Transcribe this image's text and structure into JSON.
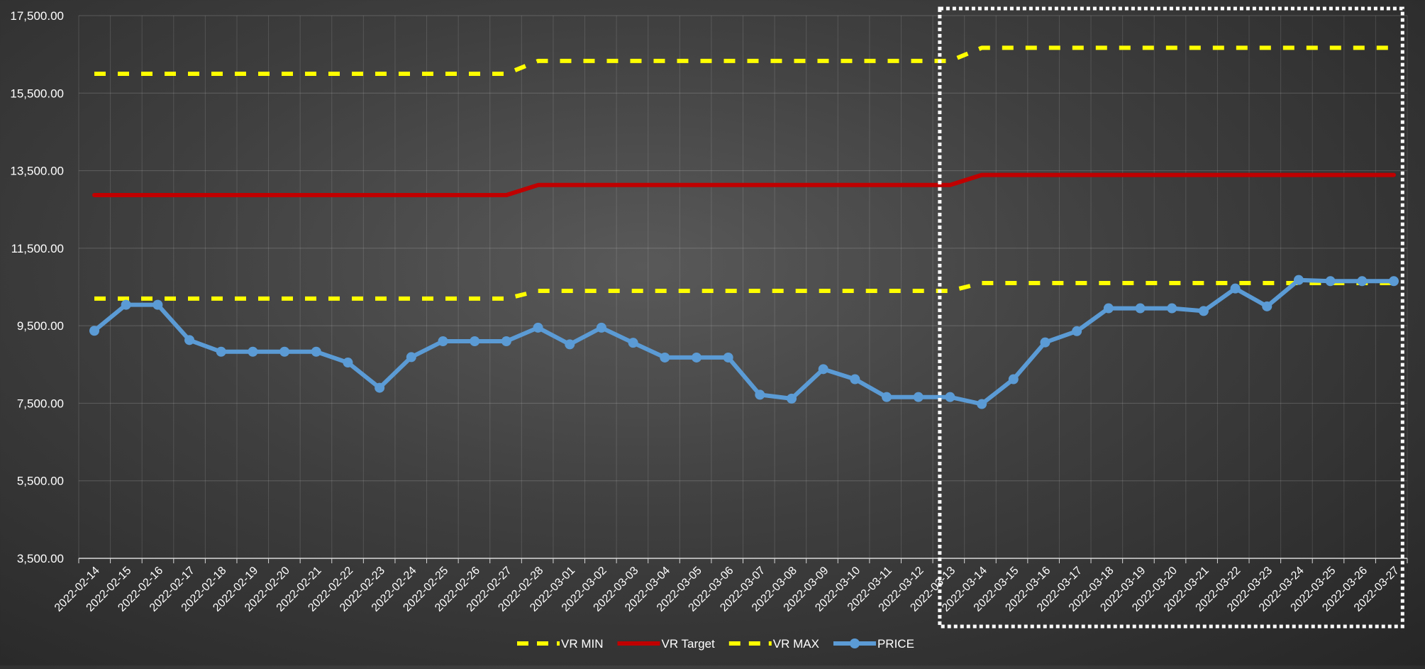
{
  "chart_data": {
    "type": "line",
    "title": "",
    "xlabel": "",
    "ylabel": "",
    "ylim": [
      3500,
      17500
    ],
    "y_ticks": [
      "3,500.00",
      "5,500.00",
      "7,500.00",
      "9,500.00",
      "11,500.00",
      "13,500.00",
      "15,500.00",
      "17,500.00"
    ],
    "y_tick_values": [
      3500,
      5500,
      7500,
      9500,
      11500,
      13500,
      15500,
      17500
    ],
    "grid": true,
    "legend_position": "bottom",
    "categories": [
      "2022-02-14",
      "2022-02-15",
      "2022-02-16",
      "2022-02-17",
      "2022-02-18",
      "2022-02-19",
      "2022-02-20",
      "2022-02-21",
      "2022-02-22",
      "2022-02-23",
      "2022-02-24",
      "2022-02-25",
      "2022-02-26",
      "2022-02-27",
      "2022-02-28",
      "2022-03-01",
      "2022-03-02",
      "2022-03-03",
      "2022-03-04",
      "2022-03-05",
      "2022-03-06",
      "2022-03-07",
      "2022-03-08",
      "2022-03-09",
      "2022-03-10",
      "2022-03-11",
      "2022-03-12",
      "2022-03-13",
      "2022-03-14",
      "2022-03-15",
      "2022-03-16",
      "2022-03-17",
      "2022-03-18",
      "2022-03-19",
      "2022-03-20",
      "2022-03-21",
      "2022-03-22",
      "2022-03-23",
      "2022-03-24",
      "2022-03-25",
      "2022-03-26",
      "2022-03-27"
    ],
    "series": [
      {
        "name": "VR MIN",
        "color": "#ffff00",
        "style": "dashed",
        "values": [
          10200,
          10200,
          10200,
          10200,
          10200,
          10200,
          10200,
          10200,
          10200,
          10200,
          10200,
          10200,
          10200,
          10200,
          10400,
          10400,
          10400,
          10400,
          10400,
          10400,
          10400,
          10400,
          10400,
          10400,
          10400,
          10400,
          10400,
          10400,
          10600,
          10600,
          10600,
          10600,
          10600,
          10600,
          10600,
          10600,
          10600,
          10600,
          10600,
          10600,
          10600,
          10600
        ]
      },
      {
        "name": "VR Target",
        "color": "#c00000",
        "style": "solid",
        "values": [
          12870,
          12870,
          12870,
          12870,
          12870,
          12870,
          12870,
          12870,
          12870,
          12870,
          12870,
          12870,
          12870,
          12870,
          13130,
          13130,
          13130,
          13130,
          13130,
          13130,
          13130,
          13130,
          13130,
          13130,
          13130,
          13130,
          13130,
          13130,
          13390,
          13390,
          13390,
          13390,
          13390,
          13390,
          13390,
          13390,
          13390,
          13390,
          13390,
          13390,
          13390,
          13390
        ]
      },
      {
        "name": "VR MAX",
        "color": "#ffff00",
        "style": "dashed",
        "values": [
          16000,
          16000,
          16000,
          16000,
          16000,
          16000,
          16000,
          16000,
          16000,
          16000,
          16000,
          16000,
          16000,
          16000,
          16330,
          16330,
          16330,
          16330,
          16330,
          16330,
          16330,
          16330,
          16330,
          16330,
          16330,
          16330,
          16330,
          16330,
          16670,
          16670,
          16670,
          16670,
          16670,
          16670,
          16670,
          16670,
          16670,
          16670,
          16670,
          16670,
          16670,
          16670
        ]
      },
      {
        "name": "PRICE",
        "color": "#5b9bd5",
        "style": "solid-markers",
        "values": [
          9370,
          10040,
          10040,
          9130,
          8830,
          8830,
          8830,
          8830,
          8550,
          7900,
          8690,
          9100,
          9100,
          9100,
          9450,
          9020,
          9450,
          9060,
          8680,
          8680,
          8680,
          7720,
          7620,
          8380,
          8120,
          7660,
          7660,
          7660,
          7480,
          8120,
          9070,
          9360,
          9950,
          9950,
          9950,
          9880,
          10460,
          10000,
          10680,
          10650,
          10650,
          10650
        ]
      }
    ],
    "highlight_box": {
      "from": "2022-03-13",
      "to": "2022-03-27",
      "style": "dotted",
      "color": "#ffffff"
    }
  }
}
